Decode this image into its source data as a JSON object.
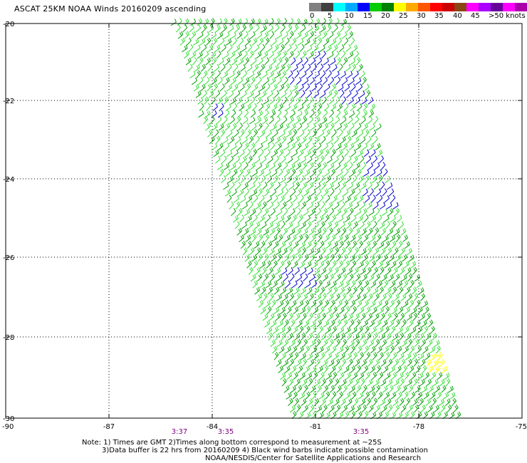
{
  "title": "ASCAT 25KM NOAA Winds 20160209 ascending",
  "colorbar": {
    "labels": [
      "0",
      "5",
      "10",
      "15",
      "20",
      "25",
      "30",
      "35",
      "40",
      "45",
      ">50 knots"
    ],
    "colors": [
      "#808080",
      "#404040",
      "#00ffff",
      "#00aaff",
      "#0000ff",
      "#00cc00",
      "#008000",
      "#ffff00",
      "#ffaa00",
      "#ff5500",
      "#ff0000",
      "#cc0000",
      "#8b4513",
      "#ff00ff",
      "#aa00ff",
      "#660099",
      "#ff00ff",
      "#aa00aa"
    ]
  },
  "axes": {
    "y_labels": [
      "-20",
      "-22",
      "-24",
      "-26",
      "-28",
      "-30"
    ],
    "x_labels": [
      "-90",
      "-87",
      "-84",
      "-81",
      "-78",
      "-75"
    ]
  },
  "times": [
    "3:37",
    "3:35",
    "3:35"
  ],
  "notes": {
    "line1": "Note: 1) Times are GMT 2)Times along bottom correspond to measurement at ~25S",
    "line2": "3)Data buffer is 22 hrs from 20160209 4) Black wind barbs indicate possible contamination",
    "line3": "NOAA/NESDIS/Center for Satellite Applications and Research"
  },
  "wind_colors": {
    "light_green": "#33dd33",
    "dark_green": "#00a000",
    "blue": "#0000cc",
    "yellow": "#ffff00"
  }
}
